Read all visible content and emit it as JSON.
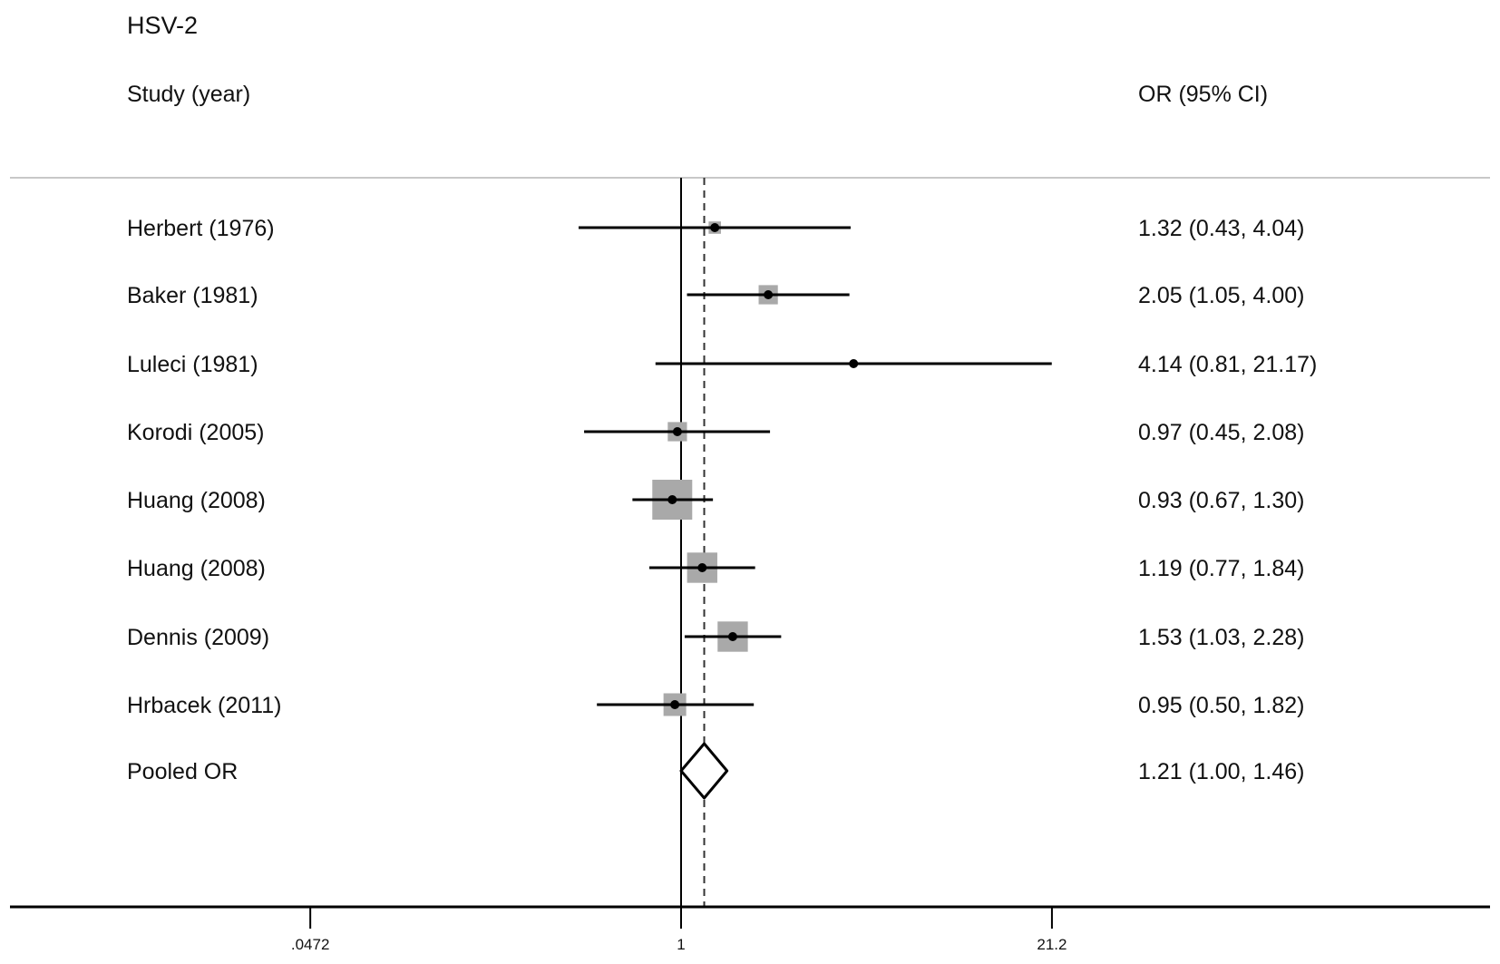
{
  "chart_data": {
    "type": "forest",
    "title": "HSV-2",
    "column_headers": {
      "study": "Study (year)",
      "estimate": "OR (95% CI)"
    },
    "x_scale": "log",
    "x_ticks": [
      {
        "value": 0.0472,
        "label": ".0472"
      },
      {
        "value": 1,
        "label": "1"
      },
      {
        "value": 21.2,
        "label": "21.2"
      }
    ],
    "null_line": 1,
    "pooled_line": 1.21,
    "studies": [
      {
        "label": "Herbert (1976)",
        "or": 1.32,
        "lo": 0.43,
        "hi": 4.04,
        "text": "1.32 (0.43, 4.04)",
        "weight_relative": 0.2
      },
      {
        "label": "Baker (1981)",
        "or": 2.05,
        "lo": 1.05,
        "hi": 4.0,
        "text": "2.05 (1.05, 4.00)",
        "weight_relative": 0.4
      },
      {
        "label": "Luleci (1981)",
        "or": 4.14,
        "lo": 0.81,
        "hi": 21.17,
        "text": "4.14 (0.81, 21.17)",
        "weight_relative": 0.0
      },
      {
        "label": "Korodi (2005)",
        "or": 0.97,
        "lo": 0.45,
        "hi": 2.08,
        "text": "0.97 (0.45, 2.08)",
        "weight_relative": 0.4
      },
      {
        "label": "Huang (2008)",
        "or": 0.93,
        "lo": 0.67,
        "hi": 1.3,
        "text": "0.93 (0.67, 1.30)",
        "weight_relative": 1.0
      },
      {
        "label": "Huang (2008)",
        "or": 1.19,
        "lo": 0.77,
        "hi": 1.84,
        "text": "1.19 (0.77, 1.84)",
        "weight_relative": 0.72
      },
      {
        "label": "Dennis (2009)",
        "or": 1.53,
        "lo": 1.03,
        "hi": 2.28,
        "text": "1.53 (1.03, 2.28)",
        "weight_relative": 0.72
      },
      {
        "label": "Hrbacek (2011)",
        "or": 0.95,
        "lo": 0.5,
        "hi": 1.82,
        "text": "0.95 (0.50, 1.82)",
        "weight_relative": 0.5
      }
    ],
    "pooled": {
      "label": "Pooled OR",
      "or": 1.21,
      "lo": 1.0,
      "hi": 1.46,
      "text": "1.21 (1.00, 1.46)"
    },
    "colors": {
      "box": "#a9a9a9",
      "line": "#000000",
      "header_rule": "#c8c8c8"
    }
  }
}
